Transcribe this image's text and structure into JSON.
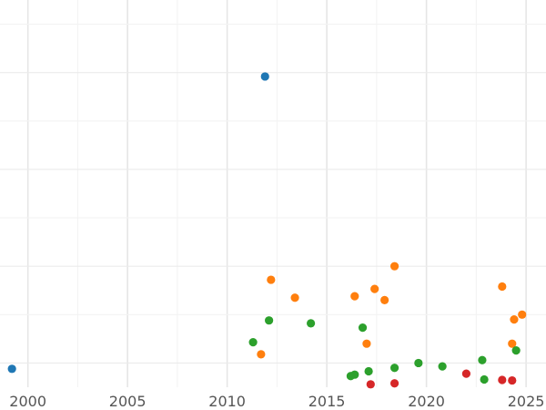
{
  "chart_data": {
    "type": "scatter",
    "title": "",
    "xlabel": "",
    "ylabel": "",
    "xlim": [
      1998.6,
      2026.0
    ],
    "ylim": [
      0,
      8
    ],
    "x_ticks": [
      2000,
      2005,
      2010,
      2015,
      2020,
      2025
    ],
    "y_grid": [
      0.5,
      1.5,
      2.5,
      3.5,
      4.5,
      5.5,
      6.5,
      7.5
    ],
    "grid": true,
    "legend": "none",
    "series": [
      {
        "color": "#1f77b4",
        "points": [
          {
            "x": 1999.2,
            "y": 0.38
          },
          {
            "x": 2011.9,
            "y": 6.42
          }
        ]
      },
      {
        "color": "#ff7f0e",
        "points": [
          {
            "x": 2011.7,
            "y": 0.68
          },
          {
            "x": 2012.2,
            "y": 2.22
          },
          {
            "x": 2013.4,
            "y": 1.85
          },
          {
            "x": 2016.4,
            "y": 1.88
          },
          {
            "x": 2017.0,
            "y": 0.9
          },
          {
            "x": 2017.4,
            "y": 2.03
          },
          {
            "x": 2017.9,
            "y": 1.8
          },
          {
            "x": 2018.4,
            "y": 2.5
          },
          {
            "x": 2023.8,
            "y": 2.08
          },
          {
            "x": 2024.3,
            "y": 0.9
          },
          {
            "x": 2024.4,
            "y": 1.4
          },
          {
            "x": 2024.8,
            "y": 1.5
          }
        ]
      },
      {
        "color": "#2ca02c",
        "points": [
          {
            "x": 2011.3,
            "y": 0.93
          },
          {
            "x": 2012.1,
            "y": 1.38
          },
          {
            "x": 2014.2,
            "y": 1.32
          },
          {
            "x": 2016.2,
            "y": 0.23
          },
          {
            "x": 2016.4,
            "y": 0.26
          },
          {
            "x": 2016.8,
            "y": 1.23
          },
          {
            "x": 2017.1,
            "y": 0.33
          },
          {
            "x": 2018.4,
            "y": 0.4
          },
          {
            "x": 2019.6,
            "y": 0.5
          },
          {
            "x": 2020.8,
            "y": 0.43
          },
          {
            "x": 2022.8,
            "y": 0.56
          },
          {
            "x": 2022.9,
            "y": 0.16
          },
          {
            "x": 2024.5,
            "y": 0.76
          }
        ]
      },
      {
        "color": "#d62728",
        "points": [
          {
            "x": 2017.2,
            "y": 0.06
          },
          {
            "x": 2018.4,
            "y": 0.08
          },
          {
            "x": 2022.0,
            "y": 0.28
          },
          {
            "x": 2023.8,
            "y": 0.15
          },
          {
            "x": 2024.3,
            "y": 0.14
          }
        ]
      }
    ]
  }
}
